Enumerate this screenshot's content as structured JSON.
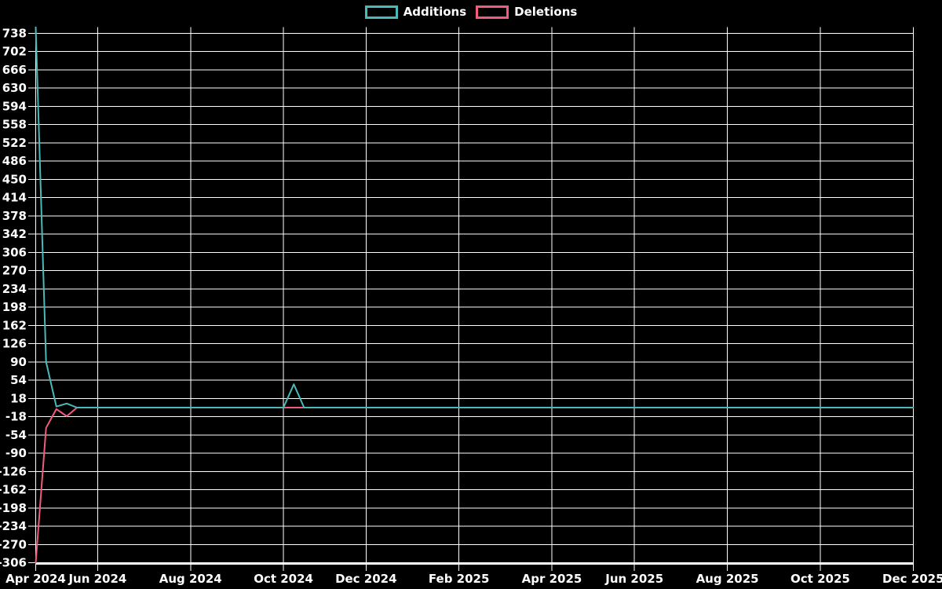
{
  "legend": {
    "additions_label": "Additions",
    "deletions_label": "Deletions"
  },
  "chart_data": {
    "type": "line",
    "title": "",
    "xlabel": "",
    "ylabel": "",
    "grid": true,
    "legend_position": "top-center",
    "background_color": "#000000",
    "gridline_color": "#ffffff",
    "text_color": "#ffffff",
    "x_ticks": [
      {
        "label": "Apr 2024",
        "week": 0
      },
      {
        "label": "Jun 2024",
        "week": 6
      },
      {
        "label": "Aug 2024",
        "week": 15
      },
      {
        "label": "Oct 2024",
        "week": 24
      },
      {
        "label": "Dec 2024",
        "week": 32
      },
      {
        "label": "Feb 2025",
        "week": 41
      },
      {
        "label": "Apr 2025",
        "week": 50
      },
      {
        "label": "Jun 2025",
        "week": 58
      },
      {
        "label": "Aug 2025",
        "week": 67
      },
      {
        "label": "Oct 2025",
        "week": 76
      },
      {
        "label": "Dec 2025",
        "week": 85
      }
    ],
    "y_ticks": [
      738,
      702,
      666,
      630,
      594,
      558,
      522,
      486,
      450,
      414,
      378,
      342,
      306,
      270,
      234,
      198,
      162,
      126,
      90,
      54,
      18,
      -18,
      -54,
      -90,
      -126,
      -162,
      -198,
      -234,
      -270,
      -306
    ],
    "ylim": [
      -308.5,
      750
    ],
    "xlim_weeks": [
      0,
      85
    ],
    "series": [
      {
        "name": "Additions",
        "color": "#4ab9b9",
        "values": [
          750,
          90,
          2,
          8,
          0,
          0,
          0,
          0,
          0,
          0,
          0,
          0,
          0,
          0,
          0,
          0,
          0,
          0,
          0,
          0,
          0,
          0,
          0,
          0,
          0,
          46,
          0,
          0,
          0,
          0,
          0,
          0,
          0,
          0,
          0,
          0,
          0,
          0,
          0,
          0,
          0,
          0,
          0,
          0,
          0,
          0,
          0,
          0,
          0,
          0,
          0,
          0,
          0,
          0,
          0,
          0,
          0,
          0,
          0,
          0,
          0,
          0,
          0,
          0,
          0,
          0,
          0,
          0,
          0,
          0,
          0,
          0,
          0,
          0,
          0,
          0,
          0,
          0,
          0,
          0,
          0,
          0,
          0,
          0,
          0,
          0
        ]
      },
      {
        "name": "Deletions",
        "color": "#f05c7e",
        "values": [
          -306,
          -40,
          -3,
          -17,
          0,
          0,
          0,
          0,
          0,
          0,
          0,
          0,
          0,
          0,
          0,
          0,
          0,
          0,
          0,
          0,
          0,
          0,
          0,
          0,
          0,
          0,
          0,
          0,
          0,
          0,
          0,
          0,
          0,
          0,
          0,
          0,
          0,
          0,
          0,
          0,
          0,
          0,
          0,
          0,
          0,
          0,
          0,
          0,
          0,
          0,
          0,
          0,
          0,
          0,
          0,
          0,
          0,
          0,
          0,
          0,
          0,
          0,
          0,
          0,
          0,
          0,
          0,
          0,
          0,
          0,
          0,
          0,
          0,
          0,
          0,
          0,
          0,
          0,
          0,
          0,
          0,
          0,
          0,
          0,
          0,
          0
        ]
      }
    ]
  }
}
